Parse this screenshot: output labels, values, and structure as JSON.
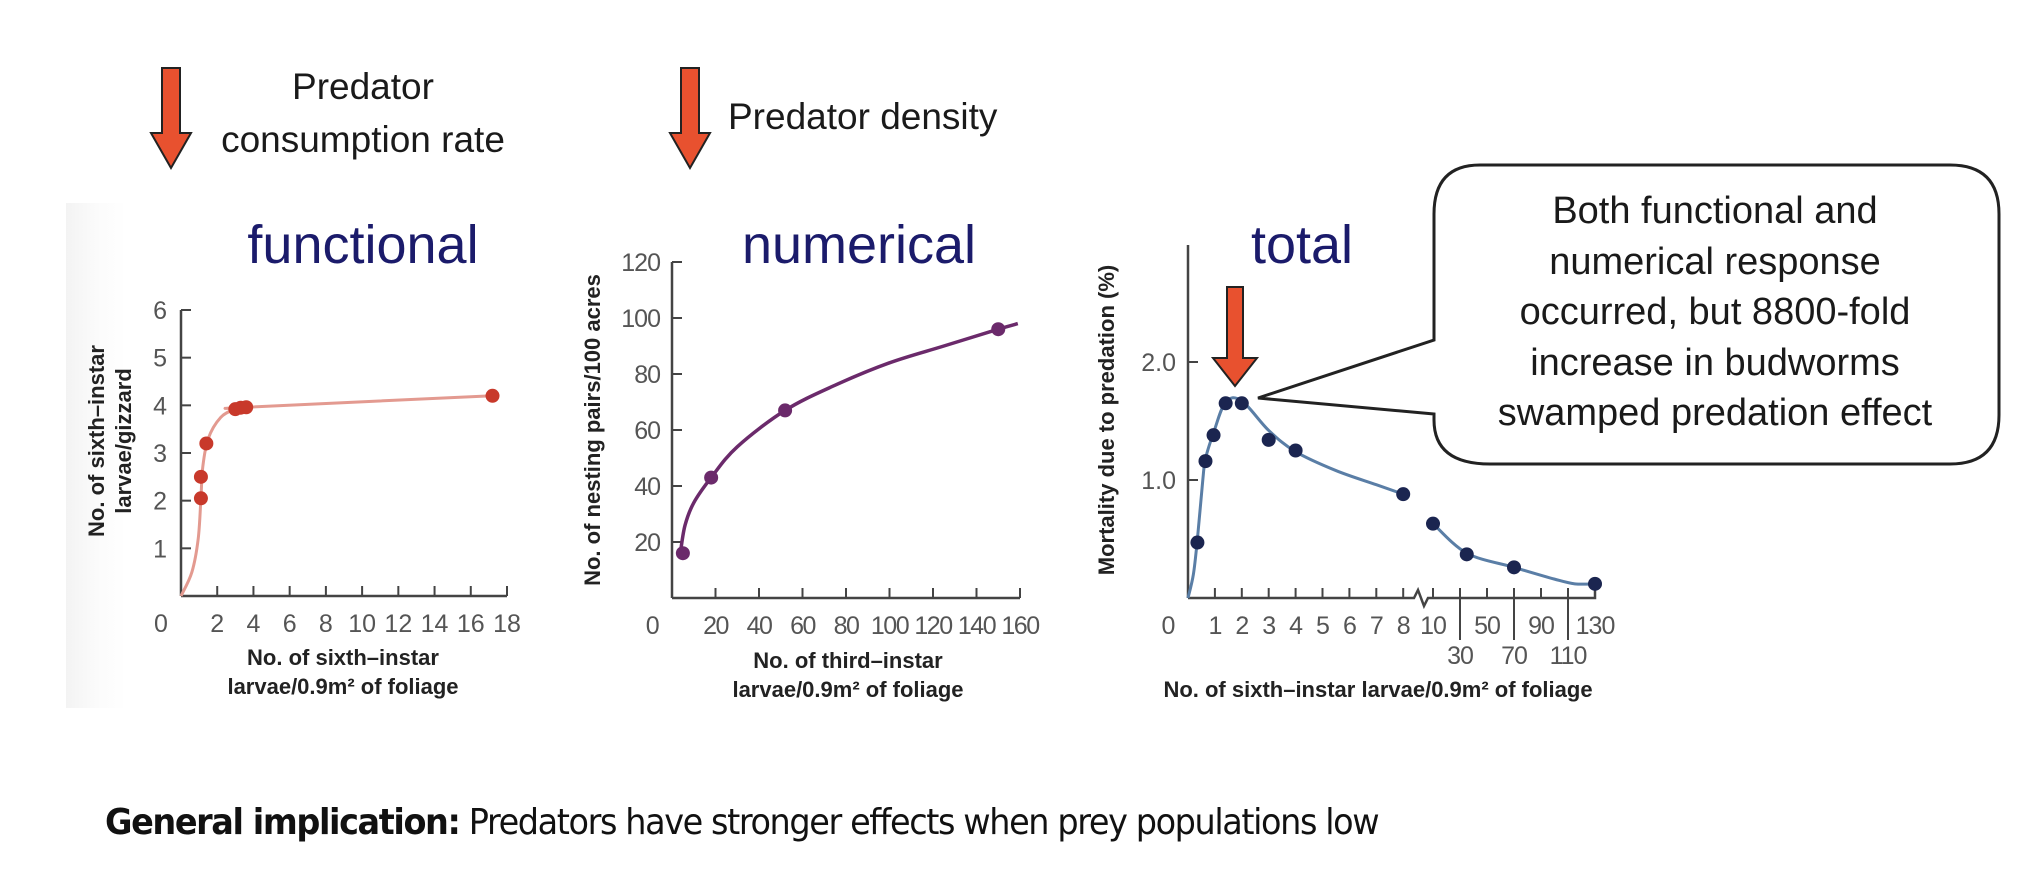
{
  "annotations": {
    "arrow_functional_label": [
      "Predator",
      "consumption rate"
    ],
    "arrow_numerical_label": "Predator density",
    "callout_lines": [
      "Both functional and",
      "numerical response",
      "occurred, but 8800-fold",
      "increase in budworms",
      "swamped predation effect"
    ],
    "arrow_color": "#e8512f",
    "title_color": "#1b1b6b"
  },
  "footer": {
    "bold": "General implication:",
    "text": " Predators have stronger effects when prey populations low"
  },
  "chart_data": [
    {
      "type": "scatter",
      "title": "functional",
      "xlabel": [
        "No. of sixth–instar",
        "larvae/0.9m² of foliage"
      ],
      "ylabel": [
        "No. of sixth–instar",
        "larvae/gizzard"
      ],
      "xlim": [
        0,
        18
      ],
      "ylim": [
        0,
        6
      ],
      "xticks": [
        0,
        2,
        4,
        6,
        8,
        10,
        12,
        14,
        16,
        18
      ],
      "yticks": [
        1,
        2,
        3,
        4,
        5,
        6
      ],
      "color": "#c8392b",
      "line_color": "#e39a90",
      "points": [
        {
          "x": 1.1,
          "y": 2.05
        },
        {
          "x": 1.1,
          "y": 2.5
        },
        {
          "x": 1.4,
          "y": 3.2
        },
        {
          "x": 3.0,
          "y": 3.92
        },
        {
          "x": 3.3,
          "y": 3.95
        },
        {
          "x": 3.6,
          "y": 3.96
        },
        {
          "x": 17.2,
          "y": 4.2
        }
      ],
      "curve": [
        {
          "x": 0,
          "y": 0
        },
        {
          "x": 0.6,
          "y": 0.5
        },
        {
          "x": 0.95,
          "y": 1.2
        },
        {
          "x": 1.1,
          "y": 2.05
        },
        {
          "x": 1.2,
          "y": 2.7
        },
        {
          "x": 1.5,
          "y": 3.3
        },
        {
          "x": 2.2,
          "y": 3.75
        },
        {
          "x": 3.0,
          "y": 3.92
        },
        {
          "x": 3.6,
          "y": 3.96
        },
        {
          "x": 17.2,
          "y": 4.2
        }
      ]
    },
    {
      "type": "scatter",
      "title": "numerical",
      "xlabel": [
        "No. of third–instar",
        "larvae/0.9m² of foliage"
      ],
      "ylabel": [
        "No. of nesting pairs/100 acres"
      ],
      "xlim": [
        0,
        160
      ],
      "ylim": [
        0,
        120
      ],
      "xticks": [
        0,
        20,
        40,
        60,
        80,
        100,
        120,
        140,
        160
      ],
      "yticks": [
        20,
        40,
        60,
        80,
        100,
        120
      ],
      "color": "#6b2a6b",
      "line_color": "#6b2a6b",
      "points": [
        {
          "x": 5,
          "y": 16
        },
        {
          "x": 18,
          "y": 43
        },
        {
          "x": 52,
          "y": 67
        },
        {
          "x": 150,
          "y": 96
        }
      ],
      "curve": [
        {
          "x": 4,
          "y": 17
        },
        {
          "x": 6,
          "y": 26
        },
        {
          "x": 10,
          "y": 34
        },
        {
          "x": 18,
          "y": 43
        },
        {
          "x": 30,
          "y": 54
        },
        {
          "x": 52,
          "y": 67
        },
        {
          "x": 75,
          "y": 76
        },
        {
          "x": 100,
          "y": 84
        },
        {
          "x": 125,
          "y": 90
        },
        {
          "x": 150,
          "y": 96
        },
        {
          "x": 159,
          "y": 98
        }
      ]
    },
    {
      "type": "scatter",
      "title": "total",
      "xlabel": [
        "No. of sixth–instar larvae/0.9m² of foliage"
      ],
      "ylabel": [
        "Mortality due to predation (%)"
      ],
      "x_scale": "broken: 0-8 linear, then 10,30,50,70,90,110,130",
      "xticks_row1": [
        "0",
        "1",
        "2",
        "3",
        "4",
        "5",
        "6",
        "7",
        "8",
        "10",
        "50",
        "90",
        "130"
      ],
      "xticks_row2": [
        "30",
        "70",
        "110"
      ],
      "ylim": [
        0,
        2.6
      ],
      "yticks": [
        "1.0",
        "2.0"
      ],
      "color": "#1b2550",
      "line_color": "#5a7ea6",
      "points": [
        {
          "x": 0.35,
          "y": 0.47
        },
        {
          "x": 0.65,
          "y": 1.16
        },
        {
          "x": 0.95,
          "y": 1.38
        },
        {
          "x": 1.4,
          "y": 1.65
        },
        {
          "x": 2.0,
          "y": 1.65
        },
        {
          "x": 3.0,
          "y": 1.34
        },
        {
          "x": 4.0,
          "y": 1.25
        },
        {
          "x": 8.0,
          "y": 0.88
        },
        {
          "x": 10,
          "y": 0.63
        },
        {
          "x": 35,
          "y": 0.37
        },
        {
          "x": 70,
          "y": 0.26
        },
        {
          "x": 130,
          "y": 0.12
        }
      ],
      "curve_segment_1": [
        {
          "x": 0,
          "y": 0
        },
        {
          "x": 0.2,
          "y": 0.2
        },
        {
          "x": 0.35,
          "y": 0.5
        },
        {
          "x": 0.55,
          "y": 1.0
        },
        {
          "x": 0.65,
          "y": 1.18
        },
        {
          "x": 0.95,
          "y": 1.4
        },
        {
          "x": 1.4,
          "y": 1.66
        },
        {
          "x": 2.0,
          "y": 1.67
        },
        {
          "x": 3.0,
          "y": 1.42
        },
        {
          "x": 4.0,
          "y": 1.24
        },
        {
          "x": 5.5,
          "y": 1.08
        },
        {
          "x": 7.0,
          "y": 0.96
        },
        {
          "x": 8.0,
          "y": 0.88
        }
      ],
      "curve_segment_2": [
        {
          "x": 10,
          "y": 0.63
        },
        {
          "x": 35,
          "y": 0.38
        },
        {
          "x": 70,
          "y": 0.26
        },
        {
          "x": 100,
          "y": 0.16
        },
        {
          "x": 115,
          "y": 0.12
        },
        {
          "x": 130,
          "y": 0.12
        }
      ],
      "annotation_arrow_at": {
        "x": 1.8,
        "y": 1.7
      }
    }
  ]
}
